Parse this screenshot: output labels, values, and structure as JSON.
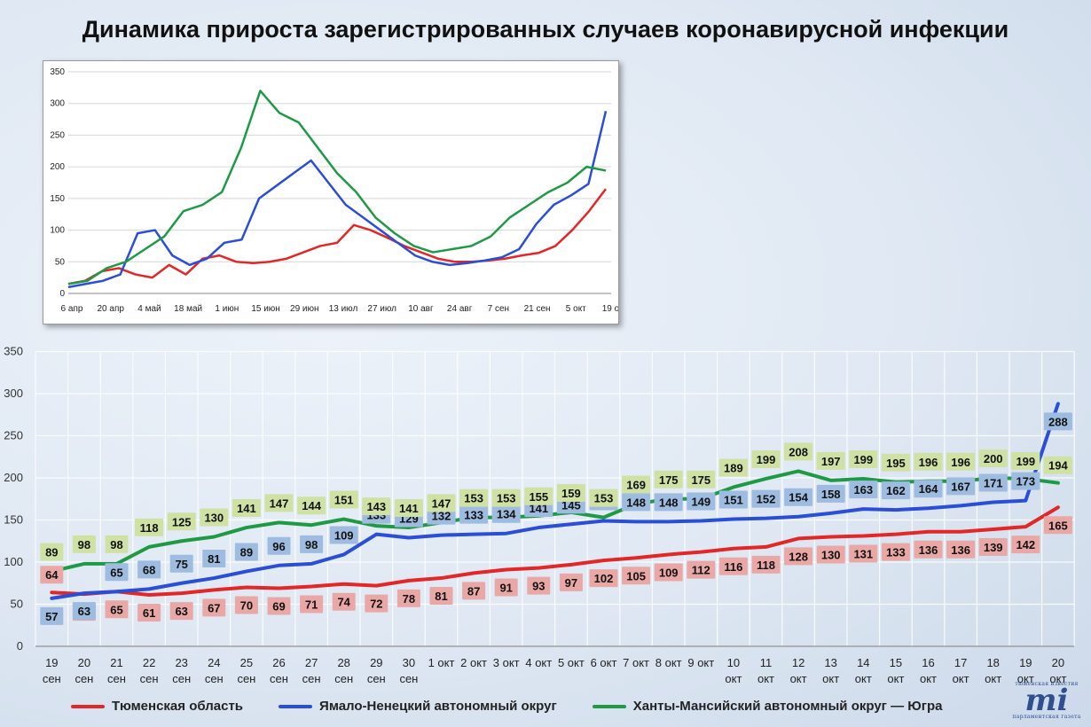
{
  "title": "Динамика прироста зарегистрированных случаев коронавирусной инфекции",
  "chart_data": [
    {
      "type": "line",
      "title": "Динамика прироста зарегистрированных случаев коронавирусной инфекции",
      "ylim": [
        0,
        350
      ],
      "yticks": [
        0,
        50,
        100,
        150,
        200,
        250,
        300,
        350
      ],
      "grid": true,
      "legend_position": "bottom",
      "categories": [
        [
          "19",
          "сен"
        ],
        [
          "20",
          "сен"
        ],
        [
          "21",
          "сен"
        ],
        [
          "22",
          "сен"
        ],
        [
          "23",
          "сен"
        ],
        [
          "24",
          "сен"
        ],
        [
          "25",
          "сен"
        ],
        [
          "26",
          "сен"
        ],
        [
          "27",
          "сен"
        ],
        [
          "28",
          "сен"
        ],
        [
          "29",
          "сен"
        ],
        [
          "30",
          "сен"
        ],
        [
          "1 окт",
          ""
        ],
        [
          "2 окт",
          ""
        ],
        [
          "3 окт",
          ""
        ],
        [
          "4 окт",
          ""
        ],
        [
          "5 окт",
          ""
        ],
        [
          "6 окт",
          ""
        ],
        [
          "7 окт",
          ""
        ],
        [
          "8 окт",
          ""
        ],
        [
          "9 окт",
          ""
        ],
        [
          "10",
          "окт"
        ],
        [
          "11",
          "окт"
        ],
        [
          "12",
          "окт"
        ],
        [
          "13",
          "окт"
        ],
        [
          "14",
          "окт"
        ],
        [
          "15",
          "окт"
        ],
        [
          "16",
          "окт"
        ],
        [
          "17",
          "окт"
        ],
        [
          "18",
          "окт"
        ],
        [
          "19",
          "окт"
        ],
        [
          "20",
          "окт"
        ]
      ],
      "series": [
        {
          "name": "Тюменская область",
          "color": "#e32727",
          "label_bg": "#e9a8a6",
          "values": [
            64,
            62,
            65,
            61,
            63,
            67,
            70,
            69,
            71,
            74,
            72,
            78,
            81,
            87,
            91,
            93,
            97,
            102,
            105,
            109,
            112,
            116,
            118,
            128,
            130,
            131,
            133,
            136,
            136,
            139,
            142,
            165
          ]
        },
        {
          "name": "Ямало-Ненецкий автономный округ",
          "color": "#2a4fd6",
          "label_bg": "#9ebbe0",
          "values": [
            57,
            63,
            65,
            68,
            75,
            81,
            89,
            96,
            98,
            109,
            133,
            129,
            132,
            133,
            134,
            141,
            145,
            149,
            148,
            148,
            149,
            151,
            152,
            154,
            158,
            163,
            162,
            164,
            167,
            171,
            173,
            288
          ]
        },
        {
          "name": "Ханты-Мансийский автономный округ — Югра",
          "color": "#1e9a45",
          "label_bg": "#cfe2a4",
          "values": [
            89,
            98,
            98,
            118,
            125,
            130,
            141,
            147,
            144,
            151,
            143,
            141,
            147,
            153,
            153,
            155,
            159,
            153,
            169,
            175,
            175,
            189,
            199,
            208,
            197,
            199,
            195,
            196,
            196,
            200,
            199,
            194
          ]
        }
      ]
    },
    {
      "type": "line",
      "ylim": [
        0,
        350
      ],
      "yticks": [
        0,
        50,
        100,
        150,
        200,
        250,
        300,
        350
      ],
      "xticks": [
        "6 апр",
        "20 апр",
        "4 май",
        "18 май",
        "1 июн",
        "15 июн",
        "29 июн",
        "13 июл",
        "27 июл",
        "10 авг",
        "24 авг",
        "7 сен",
        "21 сен",
        "5 окт",
        "19 окт"
      ],
      "grid": true,
      "series": [
        {
          "name": "Тюменская область",
          "color": "#e32727",
          "values": [
            15,
            20,
            35,
            40,
            30,
            25,
            45,
            30,
            55,
            60,
            50,
            48,
            50,
            55,
            65,
            75,
            80,
            108,
            100,
            88,
            75,
            65,
            55,
            50,
            50,
            52,
            55,
            60,
            64,
            75,
            100,
            130,
            165
          ]
        },
        {
          "name": "Ямало-Ненецкий автономный округ",
          "color": "#2a4fd6",
          "values": [
            10,
            15,
            20,
            30,
            95,
            100,
            60,
            45,
            55,
            80,
            85,
            150,
            170,
            190,
            210,
            175,
            140,
            120,
            100,
            80,
            60,
            50,
            45,
            48,
            52,
            57,
            70,
            110,
            140,
            155,
            173,
            288
          ]
        },
        {
          "name": "Ханты-Мансийский автономный округ — Югра",
          "color": "#1e9a45",
          "values": [
            15,
            20,
            40,
            50,
            70,
            90,
            130,
            140,
            160,
            230,
            320,
            285,
            270,
            230,
            190,
            160,
            120,
            95,
            75,
            65,
            70,
            75,
            90,
            120,
            140,
            160,
            175,
            200,
            194
          ]
        }
      ]
    }
  ],
  "legend": {
    "items": [
      {
        "label": "Тюменская область",
        "color": "#e32727"
      },
      {
        "label": "Ямало-Ненецкий автономный округ",
        "color": "#2a4fd6"
      },
      {
        "label": "Ханты-Мансийский автономный округ — Югра",
        "color": "#1e9a45"
      }
    ]
  },
  "logo": {
    "top": "тюменская известия",
    "mark": "mi",
    "bottom": "парламентская газета"
  }
}
